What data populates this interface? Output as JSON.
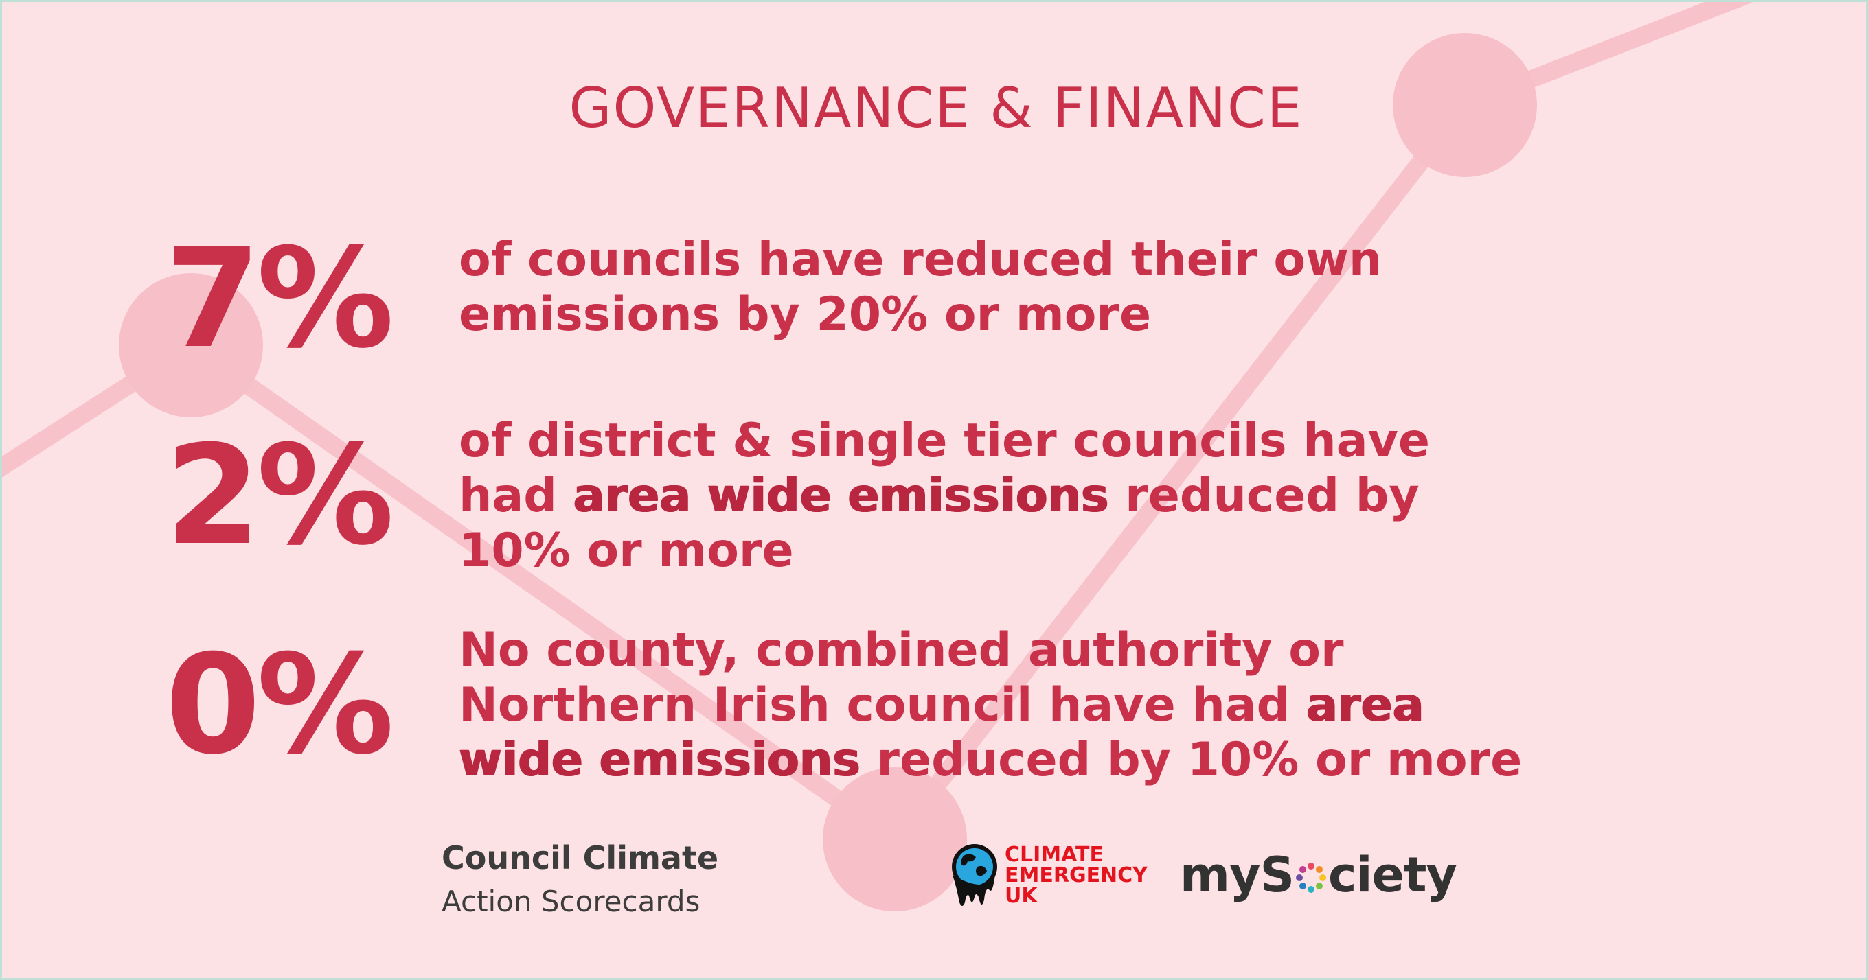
{
  "heading": "GOVERNANCE & FINANCE",
  "stats": [
    {
      "number": "7%",
      "lines": [
        [
          {
            "t": "of councils have reduced their own",
            "b": false
          }
        ],
        [
          {
            "t": "emissions by 20% or more",
            "b": false
          }
        ]
      ]
    },
    {
      "number": "2%",
      "lines": [
        [
          {
            "t": "of district & single tier councils have",
            "b": false
          }
        ],
        [
          {
            "t": "had ",
            "b": false
          },
          {
            "t": "area wide emissions",
            "b": true
          },
          {
            "t": " reduced by",
            "b": false
          }
        ],
        [
          {
            "t": "10% or more",
            "b": false
          }
        ]
      ]
    },
    {
      "number": "0%",
      "lines": [
        [
          {
            "t": "No county, combined authority or",
            "b": false
          }
        ],
        [
          {
            "t": "Northern Irish council have had ",
            "b": false
          },
          {
            "t": "area",
            "b": true
          }
        ],
        [
          {
            "t": "wide emissions",
            "b": true
          },
          {
            "t": " reduced by 10% or more",
            "b": false
          }
        ]
      ]
    }
  ],
  "footer": {
    "brand_line1": "Council Climate",
    "brand_line2": "Action Scorecards",
    "ceuk_lines": [
      "CLIMATE",
      "EMERGENCY",
      "UK"
    ],
    "mysociety_prefix": "myS",
    "mysociety_suffix": "ciety"
  },
  "colors": {
    "background": "#fde2e5",
    "accent": "#c9304a",
    "graphic": "#f6b9c3",
    "text_dark": "#333333",
    "ceuk_red": "#e3141d"
  },
  "icons": {
    "background": "line-graph-graphic",
    "ceuk_logo": "melting-globe-icon",
    "mysociety_o": "coloured-dots-ring-icon"
  }
}
